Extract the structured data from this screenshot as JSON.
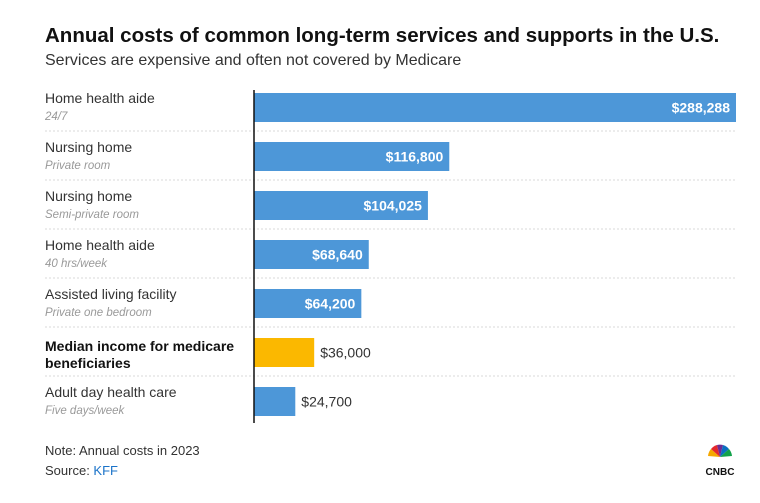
{
  "header": {
    "title": "Annual costs of common long-term services and supports in the U.S.",
    "subtitle": "Services are expensive and often not covered by Medicare"
  },
  "footer": {
    "note": "Note: Annual costs in 2023",
    "source_prefix": "Source: ",
    "source_link": "KFF",
    "logo_text": "CNBC"
  },
  "colors": {
    "bar": "#4d97d8",
    "highlight": "#fbb800",
    "label_inside": "#ffffff",
    "label_outside": "#333333",
    "separator": "#d9d9d9",
    "axis": "#111111"
  },
  "chart_data": {
    "type": "bar",
    "orientation": "horizontal",
    "categories": [
      {
        "label": "Home health aide",
        "sublabel": "24/7",
        "value": 288288,
        "value_label": "$288,288",
        "highlight": false
      },
      {
        "label": "Nursing home",
        "sublabel": "Private room",
        "value": 116800,
        "value_label": "$116,800",
        "highlight": false
      },
      {
        "label": "Nursing home",
        "sublabel": "Semi-private room",
        "value": 104025,
        "value_label": "$104,025",
        "highlight": false
      },
      {
        "label": "Home health aide",
        "sublabel": "40 hrs/week",
        "value": 68640,
        "value_label": "$68,640",
        "highlight": false
      },
      {
        "label": "Assisted living facility",
        "sublabel": "Private one bedroom",
        "value": 64200,
        "value_label": "$64,200",
        "highlight": false
      },
      {
        "label": "Median income for medicare beneficiaries",
        "sublabel": "",
        "value": 36000,
        "value_label": "$36,000",
        "highlight": true
      },
      {
        "label": "Adult day health care",
        "sublabel": "Five days/week",
        "value": 24700,
        "value_label": "$24,700",
        "highlight": false
      }
    ],
    "xlim": [
      0,
      288288
    ]
  }
}
